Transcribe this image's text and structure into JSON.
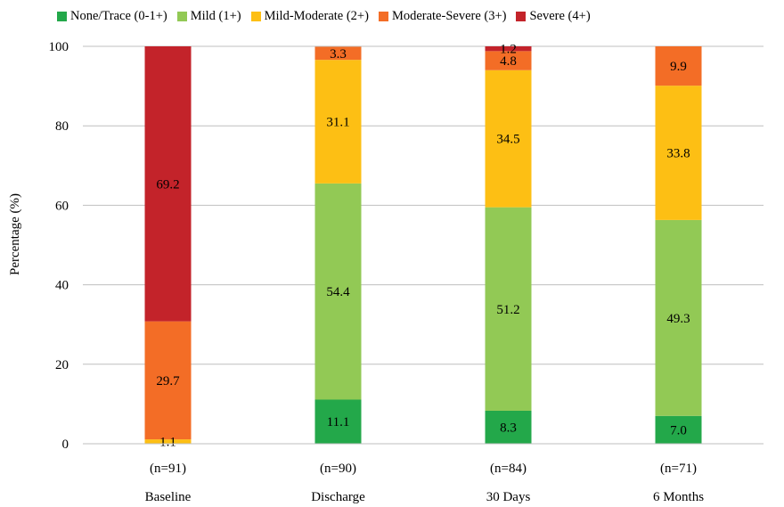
{
  "chart_data": {
    "type": "bar",
    "stacked": true,
    "title": "",
    "xlabel": "",
    "ylabel": "Percentage (%)",
    "ylim": [
      0,
      100
    ],
    "yticks": [
      0,
      20,
      40,
      60,
      80,
      100
    ],
    "grid": true,
    "legend_position": "top",
    "categories": [
      "Baseline",
      "Discharge",
      "30 Days",
      "6 Months"
    ],
    "category_counts": [
      "(n=91)",
      "(n=90)",
      "(n=84)",
      "(n=71)"
    ],
    "series": [
      {
        "name": "None/Trace (0-1+)",
        "color": "#23a84a",
        "values": [
          0,
          11.1,
          8.3,
          7.0
        ],
        "labels": [
          "",
          "11.1",
          "8.3",
          "7.0"
        ]
      },
      {
        "name": "Mild (1+)",
        "color": "#92c955",
        "values": [
          0,
          54.4,
          51.2,
          49.3
        ],
        "labels": [
          "",
          "54.4",
          "51.2",
          "49.3"
        ]
      },
      {
        "name": "Mild-Moderate (2+)",
        "color": "#fdbf14",
        "values": [
          1.1,
          31.1,
          34.5,
          33.8
        ],
        "labels": [
          "1.1",
          "31.1",
          "34.5",
          "33.8"
        ]
      },
      {
        "name": "Moderate-Severe (3+)",
        "color": "#f36d26",
        "values": [
          29.7,
          3.3,
          4.8,
          9.9
        ],
        "labels": [
          "29.7",
          "3.3",
          "4.8",
          "9.9"
        ]
      },
      {
        "name": "Severe (4+)",
        "color": "#c3232a",
        "values": [
          69.2,
          0,
          1.2,
          0
        ],
        "labels": [
          "69.2",
          "",
          "1.2",
          ""
        ]
      }
    ]
  }
}
